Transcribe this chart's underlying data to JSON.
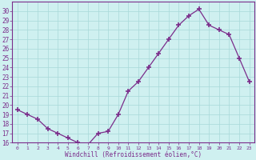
{
  "x": [
    0,
    1,
    2,
    3,
    4,
    5,
    6,
    7,
    8,
    9,
    10,
    11,
    12,
    13,
    14,
    15,
    16,
    17,
    18,
    19,
    20,
    21,
    22,
    23
  ],
  "y": [
    19.5,
    19.0,
    18.5,
    17.5,
    17.0,
    16.5,
    16.0,
    15.8,
    17.0,
    17.2,
    19.0,
    21.5,
    22.5,
    24.0,
    25.5,
    27.0,
    28.5,
    29.5,
    30.2,
    28.5,
    28.0,
    27.5,
    25.0,
    22.5
  ],
  "line_color": "#7b2d8b",
  "marker": "+",
  "marker_size": 4,
  "marker_linewidth": 1.2,
  "line_width": 0.9,
  "bg_color": "#cff0f0",
  "grid_color": "#a8d8d8",
  "xlabel": "Windchill (Refroidissement éolien,°C)",
  "ylim": [
    16,
    31
  ],
  "xlim": [
    -0.5,
    23.5
  ],
  "yticks": [
    16,
    17,
    18,
    19,
    20,
    21,
    22,
    23,
    24,
    25,
    26,
    27,
    28,
    29,
    30
  ],
  "xticks": [
    0,
    1,
    2,
    3,
    4,
    5,
    6,
    7,
    8,
    9,
    10,
    11,
    12,
    13,
    14,
    15,
    16,
    17,
    18,
    19,
    20,
    21,
    22,
    23
  ],
  "tick_color": "#7b2d8b",
  "axis_color": "#7b2d8b",
  "xlabel_color": "#7b2d8b",
  "font_family": "monospace",
  "ytick_fontsize": 5.5,
  "xtick_fontsize": 4.5,
  "xlabel_fontsize": 5.5
}
